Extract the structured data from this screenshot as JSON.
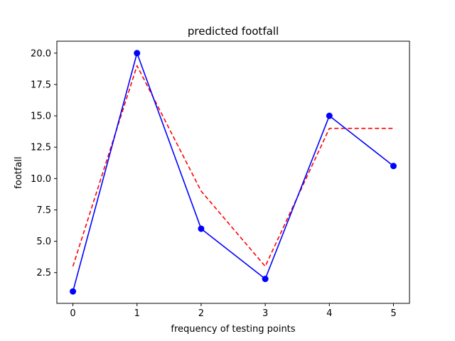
{
  "chart_data": {
    "type": "line",
    "title": "predicted footfall",
    "xlabel": "frequency of testing points",
    "ylabel": "footfall",
    "xlim": [
      -0.25,
      5.25
    ],
    "ylim": [
      0.05,
      20.95
    ],
    "xticks": [
      0,
      1,
      2,
      3,
      4,
      5
    ],
    "xtick_labels": [
      "0",
      "1",
      "2",
      "3",
      "4",
      "5"
    ],
    "yticks": [
      2.5,
      5.0,
      7.5,
      10.0,
      12.5,
      15.0,
      17.5,
      20.0
    ],
    "ytick_labels": [
      "2.5",
      "5.0",
      "7.5",
      "10.0",
      "12.5",
      "15.0",
      "17.5",
      "20.0"
    ],
    "grid": false,
    "series": [
      {
        "x": [
          0,
          1,
          2,
          3,
          4,
          5
        ],
        "values": [
          1,
          20,
          6,
          2,
          15,
          11
        ],
        "color": "#0000ff",
        "style": "solid",
        "markers": true
      },
      {
        "x": [
          0,
          1,
          2,
          3,
          4,
          5
        ],
        "values": [
          3,
          19,
          9,
          3,
          14,
          14
        ],
        "color": "#ff0000",
        "style": "dashed",
        "markers": false
      }
    ]
  }
}
